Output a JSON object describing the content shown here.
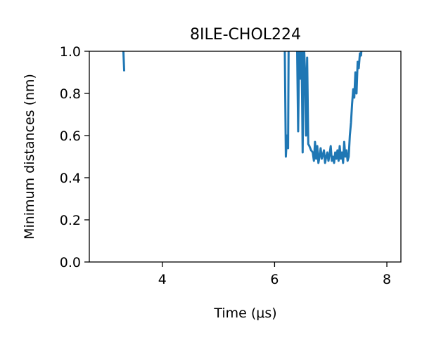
{
  "chart_data": {
    "type": "line",
    "title": "8ILE-CHOL224",
    "xlabel": "Time (μs)",
    "ylabel": "Minimum distances (nm)",
    "xlim": [
      2.7,
      8.25
    ],
    "ylim": [
      0.0,
      1.0
    ],
    "xticks": [
      4,
      6,
      8
    ],
    "yticks": [
      0.0,
      0.2,
      0.4,
      0.6,
      0.8,
      1.0
    ],
    "xtick_labels": [
      "4",
      "6",
      "8"
    ],
    "ytick_labels": [
      "0.0",
      "0.2",
      "0.4",
      "0.6",
      "0.8",
      "1.0"
    ],
    "grid": false,
    "series": [
      {
        "color": "#1f77b4",
        "segments": [
          [
            [
              3.3,
              1.05
            ],
            [
              3.32,
              0.91
            ]
          ],
          [
            [
              6.18,
              1.05
            ],
            [
              6.2,
              0.5
            ],
            [
              6.22,
              0.6
            ],
            [
              6.24,
              0.54
            ],
            [
              6.25,
              1.05
            ],
            [
              6.4,
              1.05
            ],
            [
              6.42,
              0.62
            ],
            [
              6.44,
              1.05
            ],
            [
              6.46,
              0.87
            ],
            [
              6.48,
              1.05
            ],
            [
              6.5,
              0.52
            ],
            [
              6.52,
              1.05
            ],
            [
              6.54,
              0.92
            ],
            [
              6.56,
              0.6
            ],
            [
              6.58,
              0.97
            ],
            [
              6.6,
              0.56
            ],
            [
              6.62,
              0.55
            ],
            [
              6.65,
              0.53
            ],
            [
              6.68,
              0.52
            ],
            [
              6.7,
              0.48
            ],
            [
              6.72,
              0.57
            ],
            [
              6.74,
              0.49
            ],
            [
              6.76,
              0.55
            ],
            [
              6.78,
              0.47
            ],
            [
              6.8,
              0.5
            ],
            [
              6.82,
              0.54
            ],
            [
              6.84,
              0.49
            ],
            [
              6.86,
              0.51
            ],
            [
              6.88,
              0.53
            ],
            [
              6.9,
              0.47
            ],
            [
              6.92,
              0.5
            ],
            [
              6.94,
              0.52
            ],
            [
              6.96,
              0.48
            ],
            [
              6.98,
              0.51
            ],
            [
              7.0,
              0.55
            ],
            [
              7.02,
              0.48
            ],
            [
              7.04,
              0.5
            ],
            [
              7.06,
              0.47
            ],
            [
              7.08,
              0.52
            ],
            [
              7.1,
              0.49
            ],
            [
              7.12,
              0.53
            ],
            [
              7.14,
              0.48
            ],
            [
              7.16,
              0.55
            ],
            [
              7.18,
              0.49
            ],
            [
              7.2,
              0.52
            ],
            [
              7.22,
              0.47
            ],
            [
              7.24,
              0.57
            ],
            [
              7.26,
              0.5
            ],
            [
              7.28,
              0.53
            ],
            [
              7.3,
              0.48
            ],
            [
              7.32,
              0.5
            ],
            [
              7.34,
              0.6
            ],
            [
              7.36,
              0.66
            ],
            [
              7.38,
              0.75
            ],
            [
              7.4,
              0.82
            ],
            [
              7.42,
              0.78
            ],
            [
              7.44,
              0.9
            ],
            [
              7.46,
              0.8
            ],
            [
              7.48,
              0.95
            ],
            [
              7.5,
              0.92
            ],
            [
              7.52,
              0.99
            ],
            [
              7.54,
              0.98
            ],
            [
              7.56,
              1.05
            ]
          ]
        ]
      }
    ]
  }
}
